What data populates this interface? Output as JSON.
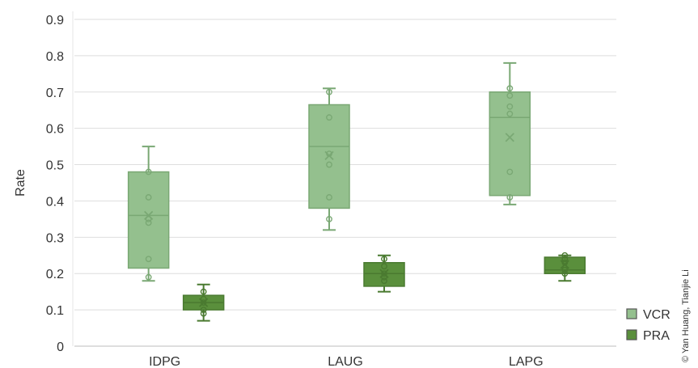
{
  "chart_data": {
    "type": "box",
    "title": "",
    "xlabel": "",
    "ylabel": "Rate",
    "ylim": [
      0,
      0.9
    ],
    "yticks": [
      "0",
      "0.1",
      "0.2",
      "0.3",
      "0.4",
      "0.5",
      "0.6",
      "0.7",
      "0.8",
      "0.9"
    ],
    "ytick_values": [
      0,
      0.1,
      0.2,
      0.3,
      0.4,
      0.5,
      0.6,
      0.7,
      0.8,
      0.9
    ],
    "categories": [
      "IDPG",
      "LAUG",
      "LAPG"
    ],
    "grid": true,
    "legend_position": "bottom-right",
    "series": [
      {
        "name": "VCR",
        "color": "#94c08e",
        "stroke": "#7aa874",
        "boxes": [
          {
            "min": 0.18,
            "q1": 0.215,
            "median": 0.36,
            "q3": 0.48,
            "max": 0.55,
            "mean": 0.36,
            "points": [
              0.19,
              0.24,
              0.34,
              0.35,
              0.41,
              0.48
            ]
          },
          {
            "min": 0.32,
            "q1": 0.38,
            "median": 0.55,
            "q3": 0.665,
            "max": 0.71,
            "mean": 0.525,
            "points": [
              0.35,
              0.41,
              0.5,
              0.53,
              0.63,
              0.7
            ]
          },
          {
            "min": 0.39,
            "q1": 0.415,
            "median": 0.63,
            "q3": 0.7,
            "max": 0.78,
            "mean": 0.575,
            "points": [
              0.41,
              0.48,
              0.64,
              0.66,
              0.69,
              0.71
            ]
          }
        ]
      },
      {
        "name": "PRA",
        "color": "#5a8f3c",
        "stroke": "#4a7a30",
        "boxes": [
          {
            "min": 0.07,
            "q1": 0.1,
            "median": 0.12,
            "q3": 0.14,
            "max": 0.17,
            "mean": 0.12,
            "points": [
              0.09,
              0.1,
              0.12,
              0.13,
              0.15
            ]
          },
          {
            "min": 0.15,
            "q1": 0.165,
            "median": 0.2,
            "q3": 0.23,
            "max": 0.25,
            "mean": 0.2,
            "points": [
              0.18,
              0.19,
              0.2,
              0.22,
              0.24
            ]
          },
          {
            "min": 0.18,
            "q1": 0.2,
            "median": 0.21,
            "q3": 0.245,
            "max": 0.25,
            "mean": 0.225,
            "points": [
              0.2,
              0.21,
              0.23,
              0.24,
              0.25
            ]
          }
        ]
      }
    ]
  },
  "credit": "© Yan Huang, Tianjie Li"
}
